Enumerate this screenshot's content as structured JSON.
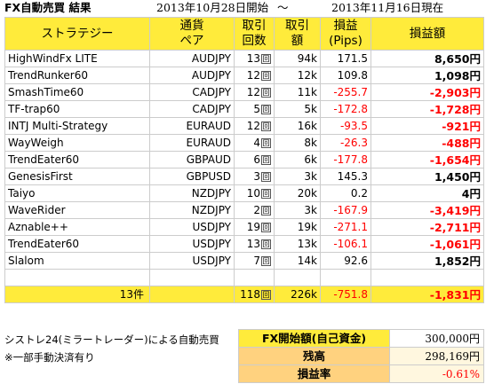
{
  "header": {
    "title": "FX自動売買 結果",
    "start_date": "2013年10月28日開始",
    "tilde": "～",
    "end_date": "2013年11月16日現在"
  },
  "columns": {
    "strategy": "ストラテジー",
    "pair": [
      "通貨",
      "ペア"
    ],
    "count": [
      "取引",
      "回数"
    ],
    "amount": [
      "取引",
      "額"
    ],
    "pips": [
      "損益",
      "(Pips)"
    ],
    "pl": "損益額"
  },
  "count_unit": "回",
  "rows": [
    {
      "strategy": "HighWindFx LITE",
      "pair": "AUDJPY",
      "count": "13",
      "amount": "94k",
      "pips": "171.5",
      "pl": "8,650円",
      "neg": false
    },
    {
      "strategy": "TrendRunker60",
      "pair": "AUDJPY",
      "count": "12",
      "amount": "12k",
      "pips": "109.8",
      "pl": "1,098円",
      "neg": false
    },
    {
      "strategy": "SmashTime60",
      "pair": "CADJPY",
      "count": "12",
      "amount": "11k",
      "pips": "-255.7",
      "pl": "-2,903円",
      "neg": true
    },
    {
      "strategy": "TF-trap60",
      "pair": "CADJPY",
      "count": "5",
      "amount": "5k",
      "pips": "-172.8",
      "pl": "-1,728円",
      "neg": true
    },
    {
      "strategy": "INTJ Multi-Strategy",
      "pair": "EURAUD",
      "count": "12",
      "amount": "16k",
      "pips": "-93.5",
      "pl": "-921円",
      "neg": true
    },
    {
      "strategy": "WayWeigh",
      "pair": "EURAUD",
      "count": "4",
      "amount": "8k",
      "pips": "-26.3",
      "pl": "-488円",
      "neg": true
    },
    {
      "strategy": "TrendEater60",
      "pair": "GBPAUD",
      "count": "6",
      "amount": "6k",
      "pips": "-177.8",
      "pl": "-1,654円",
      "neg": true
    },
    {
      "strategy": "GenesisFirst",
      "pair": "GBPUSD",
      "count": "3",
      "amount": "3k",
      "pips": "145.3",
      "pl": "1,450円",
      "neg": false
    },
    {
      "strategy": "Taiyo",
      "pair": "NZDJPY",
      "count": "10",
      "amount": "20k",
      "pips": "0.2",
      "pl": "4円",
      "neg": false
    },
    {
      "strategy": "WaveRider",
      "pair": "NZDJPY",
      "count": "2",
      "amount": "3k",
      "pips": "-167.9",
      "pl": "-3,419円",
      "neg": true
    },
    {
      "strategy": "Aznable++",
      "pair": "USDJPY",
      "count": "19",
      "amount": "19k",
      "pips": "-271.1",
      "pl": "-2,711円",
      "neg": true
    },
    {
      "strategy": "TrendEater60",
      "pair": "USDJPY",
      "count": "13",
      "amount": "13k",
      "pips": "-106.1",
      "pl": "-1,061円",
      "neg": true
    },
    {
      "strategy": "Slalom",
      "pair": "USDJPY",
      "count": "7",
      "amount": "14k",
      "pips": "92.6",
      "pl": "1,852円",
      "neg": false
    }
  ],
  "total": {
    "label": "13件",
    "count": "118",
    "amount": "226k",
    "pips": "-751.8",
    "pl": "-1,831円"
  },
  "notes": [
    "シストレ24(ミラートレーダー)による自動売買",
    "※一部手動決済有り"
  ],
  "summary": [
    {
      "label": "FX開始額(自己資金)",
      "value": "300,000円"
    },
    {
      "label": "残高",
      "value": "298,169円"
    },
    {
      "label": "損益率",
      "value": "-0.61%"
    }
  ],
  "colors": {
    "header_yellow": "#ffeb3b",
    "negative_red": "#ff0000",
    "summary_orange": "#ffd27f"
  }
}
